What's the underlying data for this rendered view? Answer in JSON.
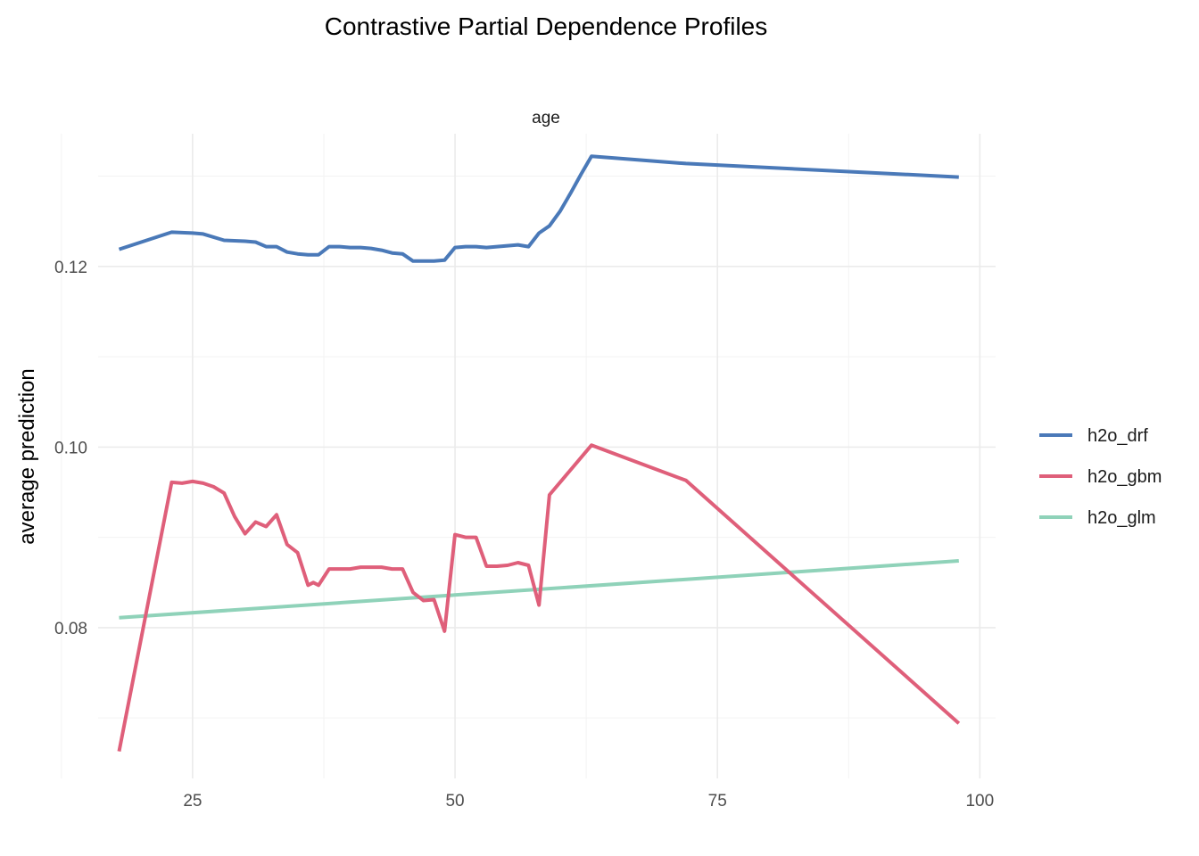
{
  "chart_data": {
    "type": "line",
    "title": "Contrastive Partial Dependence Profiles",
    "facet_label": "age",
    "xlabel": "",
    "ylabel": "average prediction",
    "xlim": [
      16,
      101.5
    ],
    "ylim": [
      0.0633,
      0.1347
    ],
    "x_ticks": [
      25,
      50,
      75,
      100
    ],
    "x_tick_labels": [
      "25",
      "50",
      "75",
      "100"
    ],
    "y_ticks": [
      0.08,
      0.1,
      0.12
    ],
    "y_tick_labels": [
      "0.08",
      "0.10",
      "0.12"
    ],
    "x_minor": [
      12.5,
      37.5,
      62.5,
      87.5
    ],
    "y_minor": [
      0.07,
      0.09,
      0.11,
      0.13
    ],
    "grid": true,
    "legend_position": "right",
    "series": [
      {
        "name": "h2o_drf",
        "color": "#4a79b8",
        "x": [
          18,
          23,
          25,
          26,
          28,
          30,
          31,
          32,
          33,
          34,
          35,
          36,
          37,
          38,
          39,
          40,
          41,
          42,
          43,
          44,
          45,
          46,
          47,
          48,
          49,
          50,
          51,
          52,
          53,
          54,
          55,
          56,
          57,
          58,
          59,
          60,
          61,
          62,
          63,
          72,
          98
        ],
        "y": [
          0.1219,
          0.1238,
          0.1237,
          0.1236,
          0.1229,
          0.1228,
          0.1227,
          0.1222,
          0.1222,
          0.1216,
          0.1214,
          0.1213,
          0.1213,
          0.1222,
          0.1222,
          0.1221,
          0.1221,
          0.122,
          0.1218,
          0.1215,
          0.1214,
          0.1206,
          0.1206,
          0.1206,
          0.1207,
          0.1221,
          0.1222,
          0.1222,
          0.1221,
          0.1222,
          0.1223,
          0.1224,
          0.1222,
          0.1237,
          0.1245,
          0.1261,
          0.1281,
          0.1302,
          0.1322,
          0.1314,
          0.1299
        ]
      },
      {
        "name": "h2o_gbm",
        "color": "#df5f7a",
        "x": [
          18,
          23,
          24,
          25,
          26,
          27,
          28,
          29,
          30,
          31,
          32,
          33,
          34,
          35,
          36,
          36.5,
          37,
          38,
          39,
          40,
          41,
          42,
          43,
          44,
          45,
          46,
          47,
          48,
          49,
          50,
          51,
          52,
          53,
          54,
          55,
          56,
          57,
          58,
          59,
          63,
          72,
          98
        ],
        "y": [
          0.0663,
          0.0961,
          0.096,
          0.0962,
          0.096,
          0.0956,
          0.0949,
          0.0923,
          0.0904,
          0.0917,
          0.0912,
          0.0925,
          0.0892,
          0.0883,
          0.0847,
          0.085,
          0.0847,
          0.0865,
          0.0865,
          0.0865,
          0.0867,
          0.0867,
          0.0867,
          0.0865,
          0.0865,
          0.0839,
          0.083,
          0.0831,
          0.0796,
          0.0903,
          0.09,
          0.09,
          0.0868,
          0.0868,
          0.0869,
          0.0872,
          0.0869,
          0.0825,
          0.0947,
          0.1002,
          0.0963,
          0.0694
        ]
      },
      {
        "name": "h2o_glm",
        "color": "#8fd2b9",
        "x": [
          18,
          98
        ],
        "y": [
          0.0811,
          0.0874
        ]
      }
    ]
  }
}
